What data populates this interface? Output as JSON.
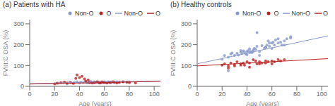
{
  "chart_data": [
    {
      "type": "scatter",
      "title": "(a)  Patients with HA",
      "xlabel": "Age (years)",
      "ylabel": "FVIII:C OSA (%)",
      "xlim": [
        0,
        105
      ],
      "ylim": [
        0,
        320
      ],
      "xticks": [
        0,
        20,
        40,
        60,
        80,
        100
      ],
      "yticks": [
        0,
        100,
        200,
        300
      ],
      "grid": false,
      "legend": "upper right",
      "series": [
        {
          "name": "Non-O",
          "type": "scatter",
          "color": "#8899cc",
          "x": [
            23,
            27,
            30,
            32,
            35,
            36,
            38,
            40,
            41,
            43,
            45,
            46,
            47,
            48,
            49,
            50,
            51,
            52,
            53,
            54,
            55,
            56,
            57,
            58,
            59,
            60,
            61,
            62,
            63,
            64,
            65,
            66,
            67,
            68,
            70,
            72,
            75,
            78,
            80
          ],
          "values": [
            15,
            18,
            12,
            20,
            15,
            18,
            22,
            16,
            20,
            18,
            22,
            16,
            20,
            18,
            24,
            20,
            16,
            22,
            18,
            20,
            22,
            18,
            16,
            20,
            18,
            22,
            20,
            16,
            22,
            18,
            20,
            22,
            20,
            18,
            22,
            18,
            22,
            20,
            22
          ]
        },
        {
          "name": "O",
          "type": "scatter",
          "color": "#bb2222",
          "x": [
            20,
            22,
            25,
            28,
            30,
            33,
            35,
            37,
            38,
            40,
            42,
            44,
            45,
            47,
            48,
            50,
            52,
            54,
            55,
            56,
            57,
            58,
            59,
            60,
            62,
            64,
            65,
            67,
            68,
            70,
            72,
            75,
            78,
            80,
            85
          ],
          "values": [
            12,
            15,
            18,
            20,
            16,
            18,
            14,
            38,
            55,
            42,
            48,
            35,
            25,
            30,
            18,
            16,
            18,
            22,
            20,
            16,
            18,
            22,
            20,
            18,
            16,
            20,
            18,
            22,
            20,
            16,
            20,
            22,
            20,
            18,
            16
          ]
        },
        {
          "name": "Non-O",
          "type": "line",
          "color": "#8899cc",
          "x": [
            0,
            105
          ],
          "values": [
            13,
            26
          ]
        },
        {
          "name": "O",
          "type": "line",
          "color": "#bb2222",
          "x": [
            0,
            105
          ],
          "values": [
            11,
            24
          ]
        }
      ]
    },
    {
      "type": "scatter",
      "title": "(b)  Healthy controls",
      "xlabel": "Age (years)",
      "ylabel": "FVIII:C OSA (%)",
      "xlim": [
        0,
        105
      ],
      "ylim": [
        0,
        320
      ],
      "xticks": [
        0,
        20,
        40,
        60,
        80,
        100
      ],
      "yticks": [
        0,
        100,
        200,
        300
      ],
      "grid": false,
      "legend": "upper right",
      "series": [
        {
          "name": "Non-O",
          "type": "scatter",
          "color": "#8899cc",
          "x": [
            20,
            22,
            25,
            27,
            28,
            30,
            32,
            33,
            35,
            36,
            37,
            38,
            39,
            40,
            41,
            42,
            43,
            44,
            45,
            46,
            47,
            48,
            50,
            52,
            54,
            55,
            56,
            57,
            58,
            60,
            61,
            62,
            63,
            65,
            67,
            68,
            70,
            72,
            75,
            25,
            35,
            40,
            42,
            45,
            48,
            50,
            55,
            58,
            60,
            65,
            70,
            75
          ],
          "values": [
            130,
            148,
            140,
            155,
            160,
            148,
            158,
            150,
            163,
            158,
            170,
            165,
            155,
            168,
            172,
            180,
            168,
            162,
            175,
            182,
            178,
            192,
            168,
            195,
            183,
            188,
            198,
            218,
            192,
            208,
            212,
            198,
            222,
            208,
            212,
            198,
            218,
            228,
            238,
            75,
            172,
            152,
            162,
            168,
            258,
            148,
            188,
            208,
            182,
            228,
            198,
            232
          ]
        },
        {
          "name": "O",
          "type": "scatter",
          "color": "#bb2222",
          "x": [
            20,
            22,
            25,
            27,
            30,
            32,
            35,
            37,
            38,
            40,
            42,
            45,
            47,
            48,
            50,
            52,
            55,
            57,
            60,
            62,
            65,
            67,
            70,
            25,
            30,
            35,
            42,
            50,
            55,
            60
          ],
          "values": [
            102,
            108,
            98,
            112,
            105,
            118,
            108,
            112,
            102,
            118,
            112,
            128,
            122,
            108,
            118,
            112,
            122,
            118,
            122,
            118,
            128,
            122,
            128,
            88,
            98,
            102,
            92,
            108,
            112,
            108
          ]
        },
        {
          "name": "Non-O",
          "type": "line",
          "color": "#8899cc",
          "x": [
            0,
            105
          ],
          "values": [
            108,
            242
          ]
        },
        {
          "name": "O",
          "type": "line",
          "color": "#bb2222",
          "x": [
            0,
            105
          ],
          "values": [
            98,
            133
          ]
        }
      ]
    }
  ]
}
